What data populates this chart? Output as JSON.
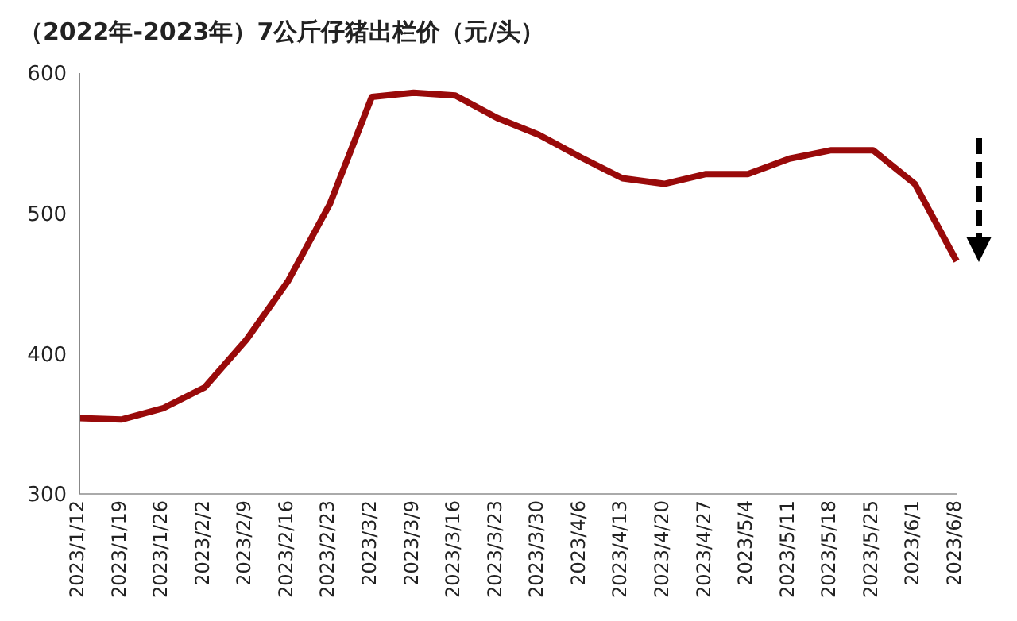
{
  "chart_data": {
    "type": "line",
    "title": "（2022年-2023年）7公斤仔猪出栏价（元/头）",
    "categories": [
      "2023/1/12",
      "2023/1/19",
      "2023/1/26",
      "2023/2/2",
      "2023/2/9",
      "2023/2/16",
      "2023/2/23",
      "2023/3/2",
      "2023/3/9",
      "2023/3/16",
      "2023/3/23",
      "2023/3/30",
      "2023/4/6",
      "2023/4/13",
      "2023/4/20",
      "2023/4/27",
      "2023/5/4",
      "2023/5/11",
      "2023/5/18",
      "2023/5/25",
      "2023/6/1",
      "2023/6/8"
    ],
    "series": [
      {
        "color": "#990a0a",
        "values": [
          354,
          353,
          361,
          376,
          410,
          452,
          507,
          583,
          586,
          584,
          568,
          556,
          540,
          525,
          521,
          528,
          528,
          539,
          545,
          545,
          521,
          466
        ]
      }
    ],
    "ylim": [
      300,
      600
    ],
    "yticks": [
      300,
      400,
      500,
      600
    ],
    "grid": false,
    "legend": false,
    "marker": "none",
    "line_style": "solid"
  }
}
